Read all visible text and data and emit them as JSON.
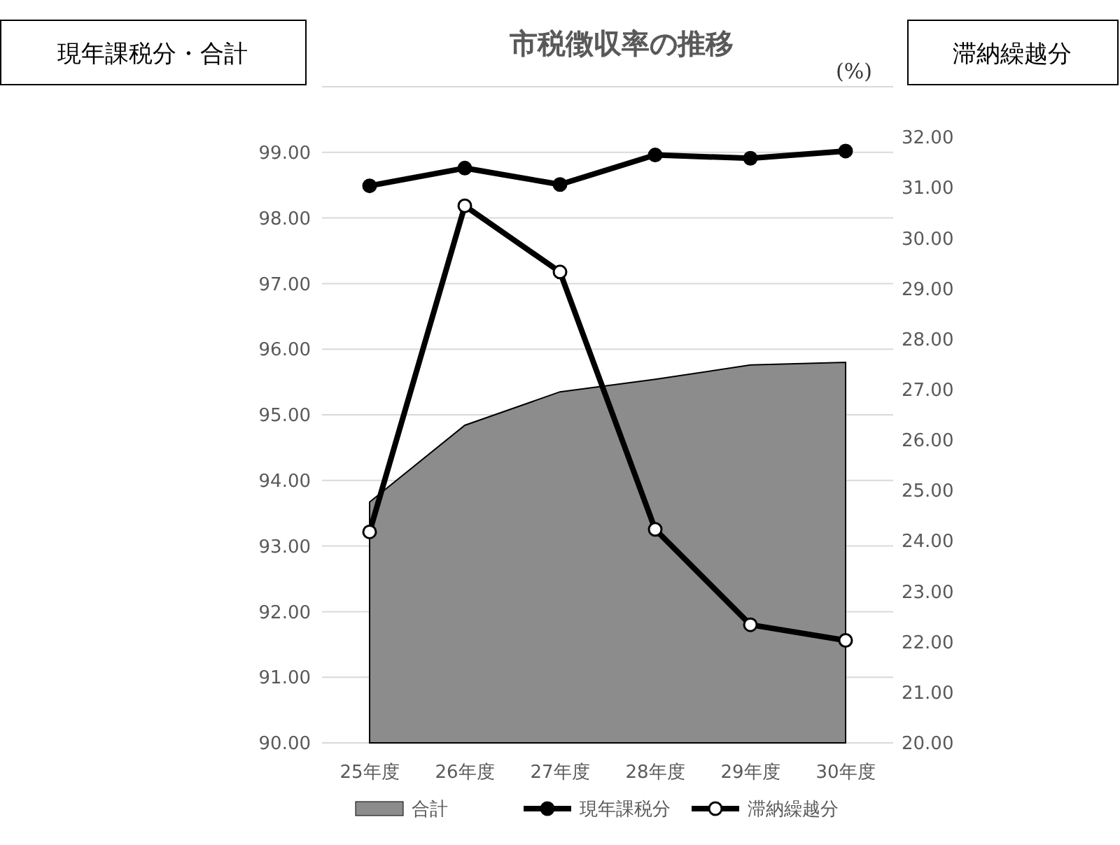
{
  "chart_data": {
    "type": "line",
    "title": "市税徴収率の推移",
    "ylabel": "現年課税分・合計",
    "y2label": "滞納繰越分",
    "annotations": [
      "(%)"
    ],
    "categories": [
      "25年度",
      "26年度",
      "27年度",
      "28年度",
      "29年度",
      "30年度"
    ],
    "series": [
      {
        "name": "合計",
        "type": "area",
        "color": "#8c8c8c",
        "values": [
          93.67,
          94.84,
          95.35,
          95.54,
          95.76,
          95.8
        ]
      },
      {
        "name": "現年課税分",
        "type": "line",
        "color": "#000000",
        "marker": "circle",
        "values": [
          98.49,
          98.76,
          98.51,
          98.96,
          98.91,
          99.02
        ]
      },
      {
        "name": "滞納繰越分",
        "type": "line",
        "color": "#000000",
        "marker": "circle",
        "axis": "y2",
        "values": [
          24.18,
          30.64,
          29.33,
          24.23,
          22.34,
          22.03
        ]
      }
    ],
    "ylim": [
      90,
      100
    ],
    "yticks": [
      {
        "value": 90,
        "label": "90.00"
      },
      {
        "value": 91,
        "label": "91.00"
      },
      {
        "value": 92,
        "label": "92.00"
      },
      {
        "value": 93,
        "label": "93.00"
      },
      {
        "value": 94,
        "label": "94.00"
      },
      {
        "value": 95,
        "label": "95.00"
      },
      {
        "value": 96,
        "label": "96.00"
      },
      {
        "value": 97,
        "label": "97.00"
      },
      {
        "value": 98,
        "label": "98.00"
      },
      {
        "value": 99,
        "label": "99.00"
      },
      {
        "value": 100,
        "label": null
      }
    ],
    "y2lim": [
      20,
      33
    ],
    "y2ticks": [
      {
        "value": 20,
        "label": "20.00"
      },
      {
        "value": 21,
        "label": "21.00"
      },
      {
        "value": 22,
        "label": "22.00"
      },
      {
        "value": 23,
        "label": "23.00"
      },
      {
        "value": 24,
        "label": "24.00"
      },
      {
        "value": 25,
        "label": "25.00"
      },
      {
        "value": 26,
        "label": "26.00"
      },
      {
        "value": 27,
        "label": "27.00"
      },
      {
        "value": 28,
        "label": "28.00"
      },
      {
        "value": 29,
        "label": "29.00"
      },
      {
        "value": 30,
        "label": "30.00"
      },
      {
        "value": 31,
        "label": "31.00"
      },
      {
        "value": 32,
        "label": "32.00"
      }
    ],
    "grid": "y",
    "legend": "bottom"
  }
}
